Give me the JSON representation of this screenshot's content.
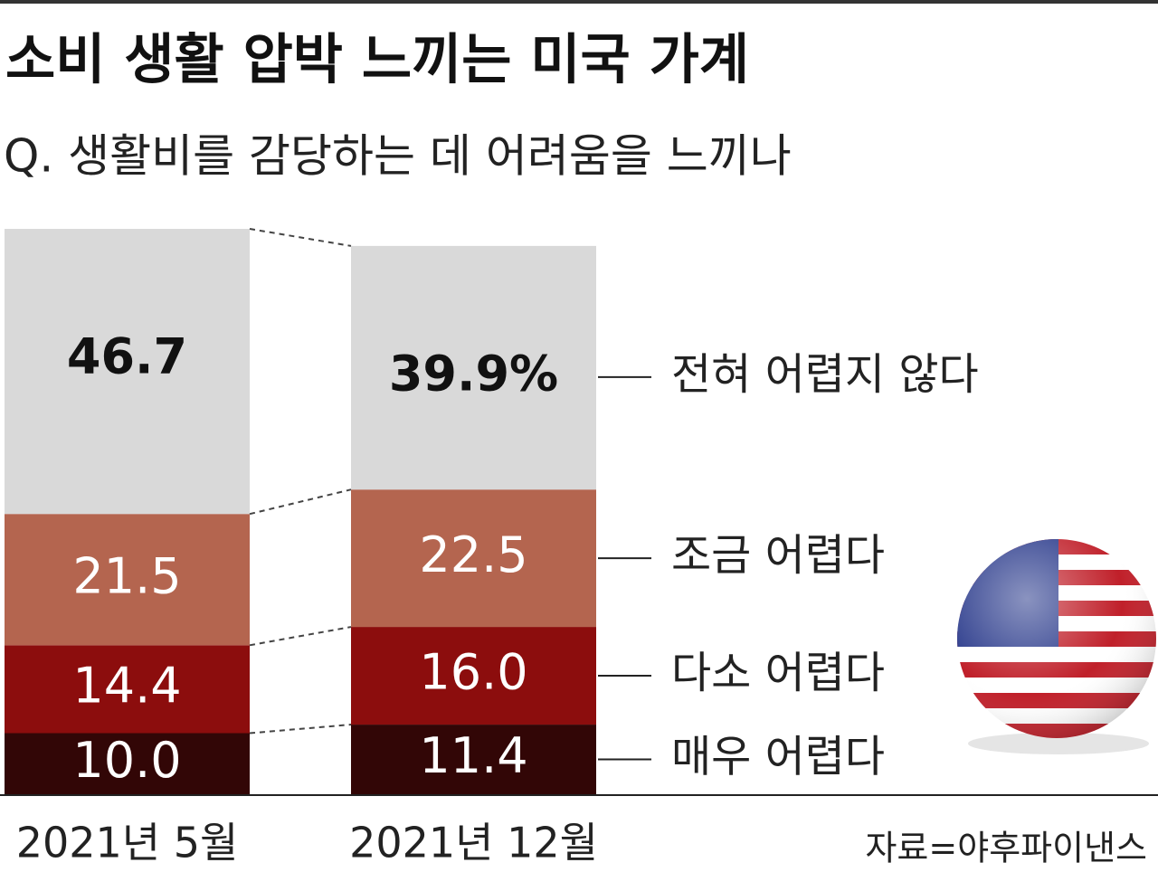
{
  "chart_data": {
    "type": "stacked-bar",
    "title": "소비 생활 압박 느끼는 미국 가계",
    "subtitle": "Q. 생활비를 감당하는 데 어려움을 느끼나",
    "source": "자료=야후파이낸스",
    "categories": [
      "2021년 5월",
      "2021년 12월"
    ],
    "series": [
      {
        "name": "매우 어렵다",
        "color": "#320606",
        "values": [
          10.0,
          11.4
        ],
        "value_labels": [
          "10.0",
          "11.4"
        ]
      },
      {
        "name": "다소 어렵다",
        "color": "#8c0d0d",
        "values": [
          14.4,
          16.0
        ],
        "value_labels": [
          "14.4",
          "16.0"
        ]
      },
      {
        "name": "조금 어렵다",
        "color": "#b4654f",
        "values": [
          21.5,
          22.5
        ],
        "value_labels": [
          "21.5",
          "22.5"
        ]
      },
      {
        "name": "전혀 어렵지 않다",
        "color": "#d9d9d9",
        "values": [
          46.7,
          39.9
        ],
        "value_labels": [
          "46.7",
          "39.9%"
        ]
      }
    ]
  }
}
